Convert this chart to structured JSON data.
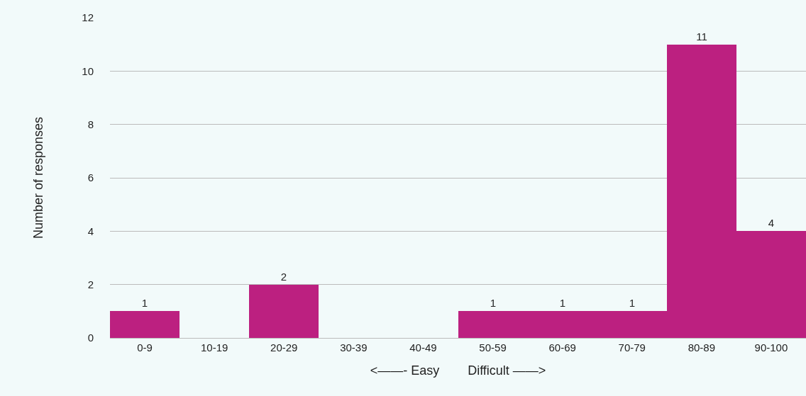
{
  "chart_data": {
    "type": "bar",
    "xlabel": "<——- Easy        Difficult ——>",
    "ylabel": "Number of responses",
    "categories": [
      "0-9",
      "10-19",
      "20-29",
      "30-39",
      "40-49",
      "50-59",
      "60-69",
      "70-79",
      "80-89",
      "90-100"
    ],
    "values": [
      1,
      0,
      2,
      0,
      0,
      1,
      1,
      1,
      11,
      4
    ],
    "value_labels": [
      "1",
      null,
      "2",
      null,
      null,
      "1",
      "1",
      "1",
      "11",
      "4"
    ],
    "color": "#bc2080",
    "ylim": [
      0,
      12
    ],
    "yticks": [
      0,
      2,
      4,
      6,
      8,
      10,
      12
    ],
    "grid": "y"
  }
}
